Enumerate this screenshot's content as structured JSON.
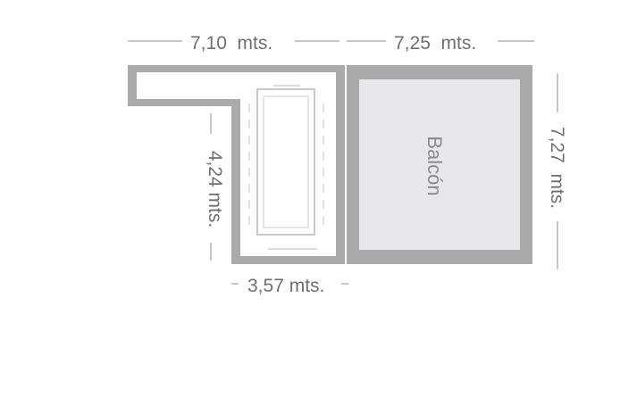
{
  "floorplan": {
    "dimensions": {
      "top_left": "7,10  mts.",
      "top_right": "7,25  mts.",
      "left_inner": "4,24 mts.",
      "right": "7,27  mts.",
      "bottom": "3,57 mts."
    },
    "rooms": {
      "balcony": "Balcón"
    },
    "colors": {
      "wall": "#aaaaaa",
      "balcony_fill": "#e8e8ea",
      "floor_fill": "#ffffff",
      "dimension_text": "#6f6f6f",
      "dimension_line": "#a3a3a3",
      "room_label": "#8a8a8a"
    }
  }
}
